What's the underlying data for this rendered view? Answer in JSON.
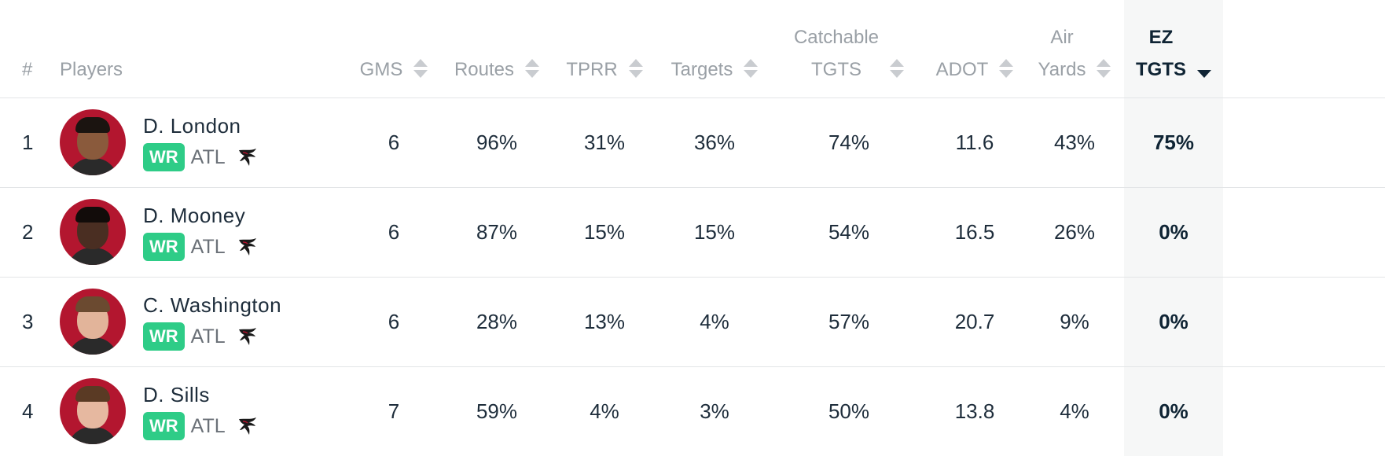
{
  "table": {
    "columns": [
      {
        "key": "rank",
        "label_lines": [
          "#"
        ],
        "sortable": false
      },
      {
        "key": "player",
        "label_lines": [
          "Players"
        ],
        "sortable": false
      },
      {
        "key": "gms",
        "label_lines": [
          "GMS"
        ],
        "sortable": true
      },
      {
        "key": "routes",
        "label_lines": [
          "Routes"
        ],
        "sortable": true
      },
      {
        "key": "tprr",
        "label_lines": [
          "TPRR"
        ],
        "sortable": true
      },
      {
        "key": "targets",
        "label_lines": [
          "Targets"
        ],
        "sortable": true
      },
      {
        "key": "catchable",
        "label_lines": [
          "Catchable",
          "TGTS"
        ],
        "sortable": true
      },
      {
        "key": "adot",
        "label_lines": [
          "ADOT"
        ],
        "sortable": true
      },
      {
        "key": "air",
        "label_lines": [
          "Air",
          "Yards"
        ],
        "sortable": true
      },
      {
        "key": "ez",
        "label_lines": [
          "EZ",
          "TGTS"
        ],
        "sortable": true,
        "sorted": "desc"
      }
    ],
    "rows": [
      {
        "rank": "1",
        "name": "D. London",
        "position": "WR",
        "team": "ATL",
        "gms": "6",
        "routes": "96%",
        "tprr": "31%",
        "targets": "36%",
        "catchable": "74%",
        "adot": "11.6",
        "air": "43%",
        "ez": "75%",
        "skin": "#8a5a3c",
        "hair": "#1b1410"
      },
      {
        "rank": "2",
        "name": "D. Mooney",
        "position": "WR",
        "team": "ATL",
        "gms": "6",
        "routes": "87%",
        "tprr": "15%",
        "targets": "15%",
        "catchable": "54%",
        "adot": "16.5",
        "air": "26%",
        "ez": "0%",
        "skin": "#4a2e22",
        "hair": "#120c0a"
      },
      {
        "rank": "3",
        "name": "C. Washington",
        "position": "WR",
        "team": "ATL",
        "gms": "6",
        "routes": "28%",
        "tprr": "13%",
        "targets": "4%",
        "catchable": "57%",
        "adot": "20.7",
        "air": "9%",
        "ez": "0%",
        "skin": "#e2b49a",
        "hair": "#6b4a30"
      },
      {
        "rank": "4",
        "name": "D. Sills",
        "position": "WR",
        "team": "ATL",
        "gms": "7",
        "routes": "59%",
        "tprr": "4%",
        "targets": "3%",
        "catchable": "50%",
        "adot": "13.8",
        "air": "4%",
        "ez": "0%",
        "skin": "#e6b8a0",
        "hair": "#5a3a24"
      }
    ]
  },
  "icons": {
    "sort": "sort-arrows-icon",
    "team_logo": "falcons-logo-icon"
  },
  "colors": {
    "badge": "#2ecc87",
    "avatar_bg": "#b3162f",
    "sorted_col_bg": "#f6f7f7"
  }
}
